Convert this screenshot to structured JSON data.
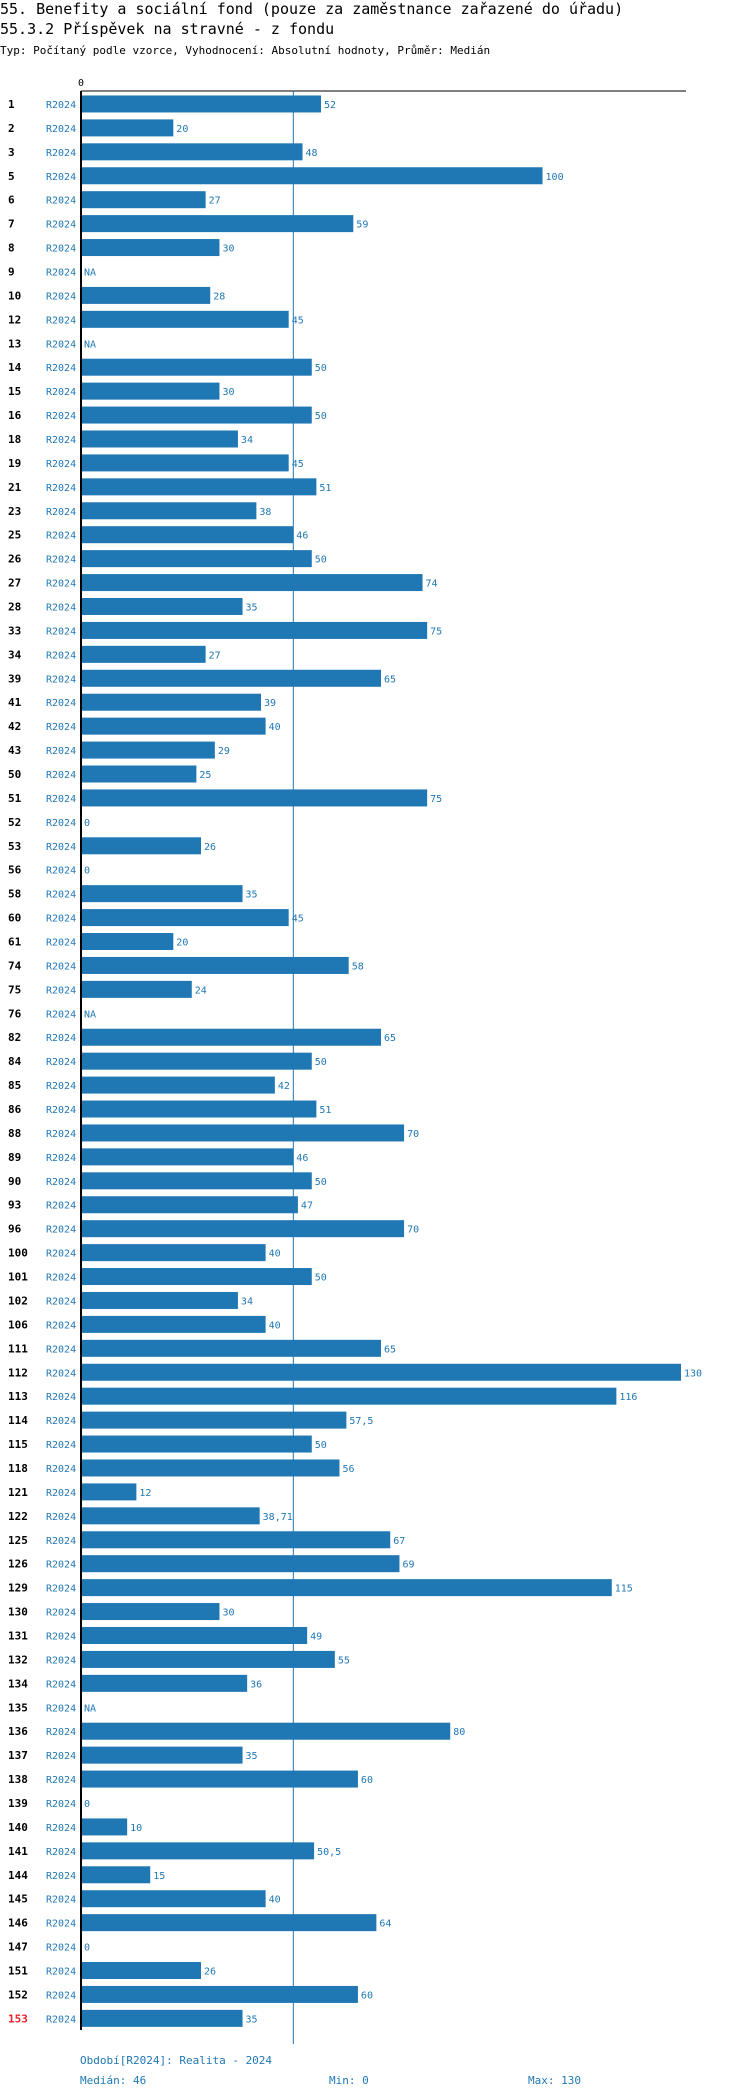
{
  "title_line1": "55. Benefity a sociální fond (pouze za zaměstnance zařazené do úřadu)",
  "title_line2": "55.3.2 Příspěvek na stravné - z fondu",
  "subtitle": "Typ: Počítaný podle vzorce, Vyhodnocení: Absolutní hodnoty, Průměr: Medián",
  "colors": {
    "bar": "#1f77b4",
    "label": "#1f77b4",
    "highlight": "#e8212a",
    "axis": "#000000",
    "median_line": "#1f77b4"
  },
  "footer": {
    "period": "Období[R2024]: Realita - 2024",
    "median": "Medián: 46",
    "min": "Min: 0",
    "max": "Max: 130"
  },
  "chart_data": {
    "type": "bar",
    "orientation": "horizontal",
    "axis_zero_label": "0",
    "xlim": [
      0,
      130
    ],
    "median": 46,
    "highlight_row": "153",
    "rows": [
      {
        "id": "1",
        "period": "R2024",
        "value": 52,
        "label": "52"
      },
      {
        "id": "2",
        "period": "R2024",
        "value": 20,
        "label": "20"
      },
      {
        "id": "3",
        "period": "R2024",
        "value": 48,
        "label": "48"
      },
      {
        "id": "5",
        "period": "R2024",
        "value": 100,
        "label": "100"
      },
      {
        "id": "6",
        "period": "R2024",
        "value": 27,
        "label": "27"
      },
      {
        "id": "7",
        "period": "R2024",
        "value": 59,
        "label": "59"
      },
      {
        "id": "8",
        "period": "R2024",
        "value": 30,
        "label": "30"
      },
      {
        "id": "9",
        "period": "R2024",
        "value": null,
        "label": "NA"
      },
      {
        "id": "10",
        "period": "R2024",
        "value": 28,
        "label": "28"
      },
      {
        "id": "12",
        "period": "R2024",
        "value": 45,
        "label": "45"
      },
      {
        "id": "13",
        "period": "R2024",
        "value": null,
        "label": "NA"
      },
      {
        "id": "14",
        "period": "R2024",
        "value": 50,
        "label": "50"
      },
      {
        "id": "15",
        "period": "R2024",
        "value": 30,
        "label": "30"
      },
      {
        "id": "16",
        "period": "R2024",
        "value": 50,
        "label": "50"
      },
      {
        "id": "18",
        "period": "R2024",
        "value": 34,
        "label": "34"
      },
      {
        "id": "19",
        "period": "R2024",
        "value": 45,
        "label": "45"
      },
      {
        "id": "21",
        "period": "R2024",
        "value": 51,
        "label": "51"
      },
      {
        "id": "23",
        "period": "R2024",
        "value": 38,
        "label": "38"
      },
      {
        "id": "25",
        "period": "R2024",
        "value": 46,
        "label": "46"
      },
      {
        "id": "26",
        "period": "R2024",
        "value": 50,
        "label": "50"
      },
      {
        "id": "27",
        "period": "R2024",
        "value": 74,
        "label": "74"
      },
      {
        "id": "28",
        "period": "R2024",
        "value": 35,
        "label": "35"
      },
      {
        "id": "33",
        "period": "R2024",
        "value": 75,
        "label": "75"
      },
      {
        "id": "34",
        "period": "R2024",
        "value": 27,
        "label": "27"
      },
      {
        "id": "39",
        "period": "R2024",
        "value": 65,
        "label": "65"
      },
      {
        "id": "41",
        "period": "R2024",
        "value": 39,
        "label": "39"
      },
      {
        "id": "42",
        "period": "R2024",
        "value": 40,
        "label": "40"
      },
      {
        "id": "43",
        "period": "R2024",
        "value": 29,
        "label": "29"
      },
      {
        "id": "50",
        "period": "R2024",
        "value": 25,
        "label": "25"
      },
      {
        "id": "51",
        "period": "R2024",
        "value": 75,
        "label": "75"
      },
      {
        "id": "52",
        "period": "R2024",
        "value": 0,
        "label": "0"
      },
      {
        "id": "53",
        "period": "R2024",
        "value": 26,
        "label": "26"
      },
      {
        "id": "56",
        "period": "R2024",
        "value": 0,
        "label": "0"
      },
      {
        "id": "58",
        "period": "R2024",
        "value": 35,
        "label": "35"
      },
      {
        "id": "60",
        "period": "R2024",
        "value": 45,
        "label": "45"
      },
      {
        "id": "61",
        "period": "R2024",
        "value": 20,
        "label": "20"
      },
      {
        "id": "74",
        "period": "R2024",
        "value": 58,
        "label": "58"
      },
      {
        "id": "75",
        "period": "R2024",
        "value": 24,
        "label": "24"
      },
      {
        "id": "76",
        "period": "R2024",
        "value": null,
        "label": "NA"
      },
      {
        "id": "82",
        "period": "R2024",
        "value": 65,
        "label": "65"
      },
      {
        "id": "84",
        "period": "R2024",
        "value": 50,
        "label": "50"
      },
      {
        "id": "85",
        "period": "R2024",
        "value": 42,
        "label": "42"
      },
      {
        "id": "86",
        "period": "R2024",
        "value": 51,
        "label": "51"
      },
      {
        "id": "88",
        "period": "R2024",
        "value": 70,
        "label": "70"
      },
      {
        "id": "89",
        "period": "R2024",
        "value": 46,
        "label": "46"
      },
      {
        "id": "90",
        "period": "R2024",
        "value": 50,
        "label": "50"
      },
      {
        "id": "93",
        "period": "R2024",
        "value": 47,
        "label": "47"
      },
      {
        "id": "96",
        "period": "R2024",
        "value": 70,
        "label": "70"
      },
      {
        "id": "100",
        "period": "R2024",
        "value": 40,
        "label": "40"
      },
      {
        "id": "101",
        "period": "R2024",
        "value": 50,
        "label": "50"
      },
      {
        "id": "102",
        "period": "R2024",
        "value": 34,
        "label": "34"
      },
      {
        "id": "106",
        "period": "R2024",
        "value": 40,
        "label": "40"
      },
      {
        "id": "111",
        "period": "R2024",
        "value": 65,
        "label": "65"
      },
      {
        "id": "112",
        "period": "R2024",
        "value": 130,
        "label": "130"
      },
      {
        "id": "113",
        "period": "R2024",
        "value": 116,
        "label": "116"
      },
      {
        "id": "114",
        "period": "R2024",
        "value": 57.5,
        "label": "57,5"
      },
      {
        "id": "115",
        "period": "R2024",
        "value": 50,
        "label": "50"
      },
      {
        "id": "118",
        "period": "R2024",
        "value": 56,
        "label": "56"
      },
      {
        "id": "121",
        "period": "R2024",
        "value": 12,
        "label": "12"
      },
      {
        "id": "122",
        "period": "R2024",
        "value": 38.71,
        "label": "38,71"
      },
      {
        "id": "125",
        "period": "R2024",
        "value": 67,
        "label": "67"
      },
      {
        "id": "126",
        "period": "R2024",
        "value": 69,
        "label": "69"
      },
      {
        "id": "129",
        "period": "R2024",
        "value": 115,
        "label": "115"
      },
      {
        "id": "130",
        "period": "R2024",
        "value": 30,
        "label": "30"
      },
      {
        "id": "131",
        "period": "R2024",
        "value": 49,
        "label": "49"
      },
      {
        "id": "132",
        "period": "R2024",
        "value": 55,
        "label": "55"
      },
      {
        "id": "134",
        "period": "R2024",
        "value": 36,
        "label": "36"
      },
      {
        "id": "135",
        "period": "R2024",
        "value": null,
        "label": "NA"
      },
      {
        "id": "136",
        "period": "R2024",
        "value": 80,
        "label": "80"
      },
      {
        "id": "137",
        "period": "R2024",
        "value": 35,
        "label": "35"
      },
      {
        "id": "138",
        "period": "R2024",
        "value": 60,
        "label": "60"
      },
      {
        "id": "139",
        "period": "R2024",
        "value": 0,
        "label": "0"
      },
      {
        "id": "140",
        "period": "R2024",
        "value": 10,
        "label": "10"
      },
      {
        "id": "141",
        "period": "R2024",
        "value": 50.5,
        "label": "50,5"
      },
      {
        "id": "144",
        "period": "R2024",
        "value": 15,
        "label": "15"
      },
      {
        "id": "145",
        "period": "R2024",
        "value": 40,
        "label": "40"
      },
      {
        "id": "146",
        "period": "R2024",
        "value": 64,
        "label": "64"
      },
      {
        "id": "147",
        "period": "R2024",
        "value": 0,
        "label": "0"
      },
      {
        "id": "151",
        "period": "R2024",
        "value": 26,
        "label": "26"
      },
      {
        "id": "152",
        "period": "R2024",
        "value": 60,
        "label": "60"
      },
      {
        "id": "153",
        "period": "R2024",
        "value": 35,
        "label": "35"
      }
    ]
  }
}
